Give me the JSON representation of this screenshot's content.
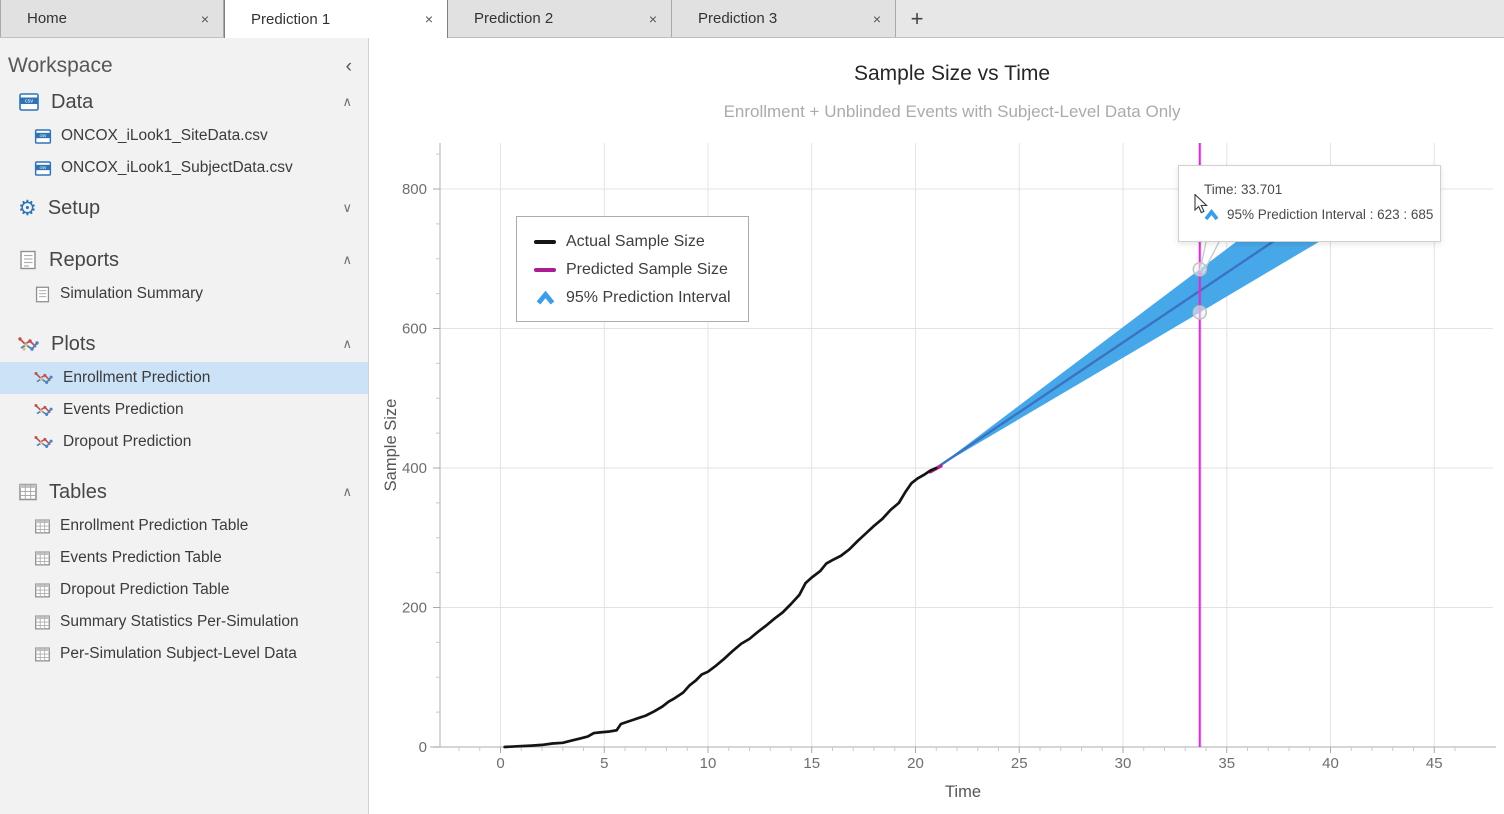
{
  "icons": {
    "close": "×",
    "add_tab": "+",
    "collapse_left": "‹"
  },
  "tabs": {
    "items": [
      {
        "label": "Home",
        "active": false
      },
      {
        "label": "Prediction 1",
        "active": true
      },
      {
        "label": "Prediction 2",
        "active": false
      },
      {
        "label": "Prediction 3",
        "active": false
      }
    ]
  },
  "sidebar": {
    "workspace_label": "Workspace",
    "sections": [
      {
        "id": "data",
        "label": "Data",
        "chevron": "∧",
        "items": [
          "ONCOX_iLook1_SiteData.csv",
          "ONCOX_iLook1_SubjectData.csv"
        ]
      },
      {
        "id": "setup",
        "label": "Setup",
        "chevron": "∨",
        "items": []
      },
      {
        "id": "reports",
        "label": "Reports",
        "chevron": "∧",
        "items": [
          "Simulation Summary"
        ]
      },
      {
        "id": "plots",
        "label": "Plots",
        "chevron": "∧",
        "selected": "Enrollment Prediction",
        "items": [
          "Enrollment Prediction",
          "Events Prediction",
          "Dropout Prediction"
        ]
      },
      {
        "id": "tables",
        "label": "Tables",
        "chevron": "∧",
        "items": [
          "Enrollment Prediction Table",
          "Events Prediction Table",
          "Dropout Prediction Table",
          "Summary Statistics Per-Simulation",
          "Per-Simulation Subject-Level Data"
        ]
      }
    ]
  },
  "chart_data": {
    "type": "line",
    "title": "Sample Size vs Time",
    "subtitle": "Enrollment + Unblinded Events with Subject-Level Data Only",
    "xlabel": "Time",
    "ylabel": "Sample Size",
    "xlim": [
      -3,
      48
    ],
    "ylim": [
      0,
      866
    ],
    "x_ticks": [
      0,
      5,
      10,
      15,
      20,
      25,
      30,
      35,
      40,
      45
    ],
    "y_ticks": [
      0,
      200,
      400,
      600,
      800
    ],
    "grid": true,
    "legend_position": "upper-left",
    "legend": [
      {
        "label": "Actual Sample Size",
        "color": "#141414",
        "type": "line"
      },
      {
        "label": "Predicted Sample Size",
        "color": "#A81E92",
        "type": "line"
      },
      {
        "label": "95% Prediction Interval",
        "color": "#3D9EE8",
        "type": "caret"
      }
    ],
    "series": [
      {
        "name": "Actual Sample Size",
        "color": "#141414",
        "points": [
          [
            0.2,
            0
          ],
          [
            0.8,
            1
          ],
          [
            1.5,
            2
          ],
          [
            2,
            3
          ],
          [
            2.5,
            5
          ],
          [
            3,
            6
          ],
          [
            3.4,
            9
          ],
          [
            3.8,
            12
          ],
          [
            4.2,
            15
          ],
          [
            4.5,
            20
          ],
          [
            4.8,
            21
          ],
          [
            5.2,
            22
          ],
          [
            5.6,
            24
          ],
          [
            5.8,
            33
          ],
          [
            6.1,
            36
          ],
          [
            6.5,
            40
          ],
          [
            7,
            45
          ],
          [
            7.4,
            51
          ],
          [
            7.8,
            58
          ],
          [
            8.1,
            65
          ],
          [
            8.4,
            70
          ],
          [
            8.8,
            78
          ],
          [
            9.1,
            88
          ],
          [
            9.4,
            95
          ],
          [
            9.7,
            104
          ],
          [
            10,
            108
          ],
          [
            10.4,
            117
          ],
          [
            10.8,
            127
          ],
          [
            11.2,
            138
          ],
          [
            11.6,
            148
          ],
          [
            12,
            155
          ],
          [
            12.4,
            165
          ],
          [
            12.8,
            174
          ],
          [
            13.2,
            184
          ],
          [
            13.6,
            193
          ],
          [
            14,
            205
          ],
          [
            14.4,
            218
          ],
          [
            14.7,
            235
          ],
          [
            15,
            243
          ],
          [
            15.4,
            252
          ],
          [
            15.7,
            263
          ],
          [
            16,
            268
          ],
          [
            16.4,
            274
          ],
          [
            16.8,
            283
          ],
          [
            17.2,
            295
          ],
          [
            17.6,
            306
          ],
          [
            18,
            317
          ],
          [
            18.4,
            327
          ],
          [
            18.8,
            340
          ],
          [
            19.2,
            350
          ],
          [
            19.5,
            365
          ],
          [
            19.8,
            378
          ],
          [
            20.1,
            385
          ],
          [
            20.4,
            390
          ],
          [
            20.7,
            396
          ],
          [
            21,
            400
          ]
        ]
      },
      {
        "name": "Predicted Sample Size",
        "color": "#3B72C2",
        "junction_color": "#BC2090",
        "points": [
          [
            21,
            400
          ],
          [
            33.701,
            654
          ],
          [
            40,
            780
          ]
        ]
      },
      {
        "name": "95% Prediction Interval",
        "fill": "#47A8E9",
        "upper": [
          [
            21,
            400
          ],
          [
            33.701,
            685
          ],
          [
            40,
            826
          ]
        ],
        "lower": [
          [
            21,
            400
          ],
          [
            33.701,
            623
          ],
          [
            40,
            734
          ]
        ]
      }
    ],
    "crosshair": {
      "time": 33.701,
      "color": "#CF35CF"
    },
    "markers": [
      [
        33.701,
        685
      ],
      [
        33.701,
        623
      ]
    ],
    "tooltip": {
      "line1": "Time: 33.701",
      "line2": "95% Prediction Interval : 623 : 685"
    }
  }
}
